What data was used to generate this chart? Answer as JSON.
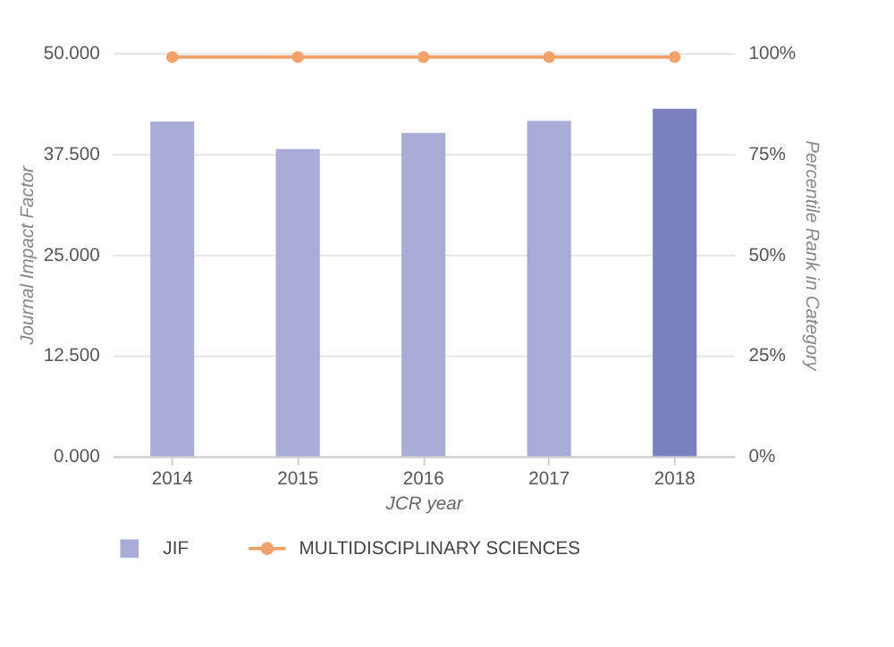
{
  "chart_data": {
    "type": "bar",
    "categories": [
      "2014",
      "2015",
      "2016",
      "2017",
      "2018"
    ],
    "series": [
      {
        "name": "JIF",
        "color": "#a9acd6",
        "colors": [
          "#a9acd6",
          "#a9acd6",
          "#a9acd6",
          "#a9acd6",
          "#7b80be"
        ],
        "values": [
          41.5,
          38.1,
          40.1,
          41.6,
          43.1
        ]
      },
      {
        "name": "MULTIDISCIPLINARY SCIENCES",
        "type": "line",
        "axis": "y2",
        "color": "#f4a26b",
        "values": [
          99,
          99,
          99,
          99,
          99
        ]
      }
    ],
    "xlabel": "JCR year",
    "ylabel": "Journal Impact Factor",
    "y2label": "Percentile Rank in Category",
    "ylim": [
      0,
      50
    ],
    "yticks": [
      {
        "value": 0,
        "label": "0.000"
      },
      {
        "value": 12.5,
        "label": "12.500"
      },
      {
        "value": 25,
        "label": "25.000"
      },
      {
        "value": 37.5,
        "label": "37.500"
      },
      {
        "value": 50,
        "label": "50.000"
      }
    ],
    "y2lim": [
      0,
      100
    ],
    "y2ticks": [
      {
        "value": 0,
        "label": "0%"
      },
      {
        "value": 25,
        "label": "25%"
      },
      {
        "value": 50,
        "label": "50%"
      },
      {
        "value": 75,
        "label": "75%"
      },
      {
        "value": 100,
        "label": "100%"
      }
    ],
    "grid": "y",
    "legend": "bottom",
    "marker": "circle"
  }
}
